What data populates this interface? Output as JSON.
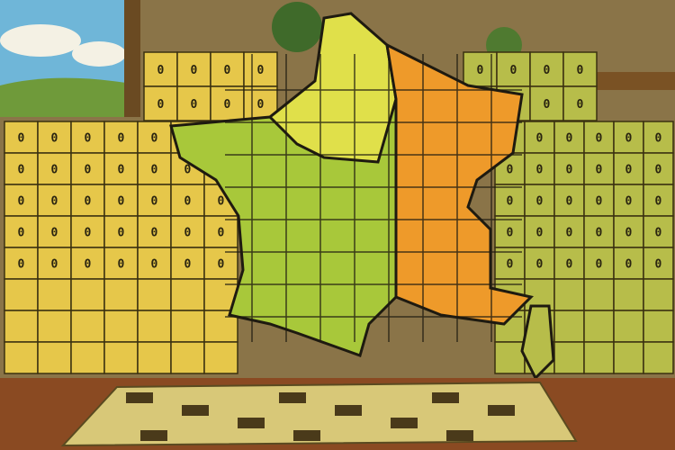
{
  "scene": {
    "subject": "France",
    "cell_glyph": "0",
    "colors": {
      "sky": "#6fb6d8",
      "cloud": "#f4f1e4",
      "hills": "#6f9a3a",
      "wall": "#8a7448",
      "panel_yellow": "#e6c74a",
      "panel_green": "#b7bd4a",
      "map_west": "#a8c83a",
      "map_north": "#e0e04a",
      "map_east": "#ee9a2a",
      "outline": "#1e1a10",
      "table": "#8a4a22",
      "mat": "#d8c878"
    }
  }
}
